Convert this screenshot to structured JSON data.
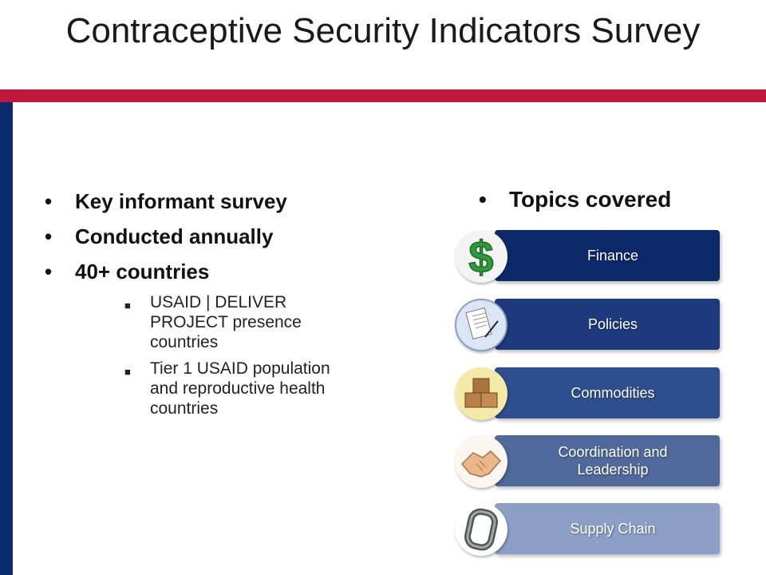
{
  "title": "Contraceptive Security Indicators Survey",
  "left_bullets": [
    {
      "text": "Key informant survey"
    },
    {
      "text": "Conducted annually"
    },
    {
      "text": "40+ countries"
    }
  ],
  "sub_bullets": [
    {
      "text": "USAID | DELIVER PROJECT presence countries"
    },
    {
      "text": "Tier 1 USAID population and reproductive health countries"
    }
  ],
  "topics_heading": "Topics covered",
  "topics": [
    {
      "label": "Finance",
      "color": "#0c2a6a",
      "icon": "dollar-icon"
    },
    {
      "label": "Policies",
      "color": "#1d3b7c",
      "icon": "document-pen-icon"
    },
    {
      "label": "Commodities",
      "color": "#2e4f8e",
      "icon": "boxes-icon"
    },
    {
      "label": "Coordination and Leadership",
      "color": "#50699d",
      "icon": "handshake-icon"
    },
    {
      "label": "Supply Chain",
      "color": "#8b9fc7",
      "icon": "chain-link-icon"
    }
  ],
  "colors": {
    "accent_red": "#c0163b",
    "navy": "#0b2a6b"
  }
}
